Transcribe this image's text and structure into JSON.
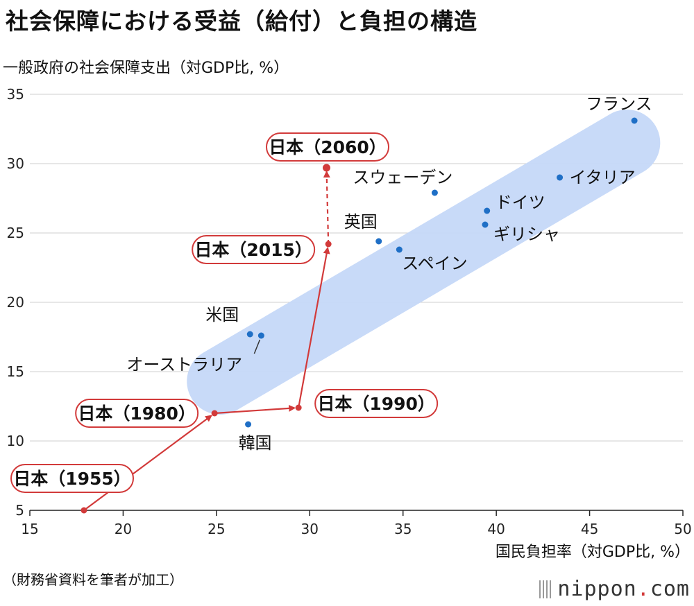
{
  "title": "社会保障における受益（給付）と負担の構造",
  "ylabel": "一般政府の社会保障支出（対GDP比, %）",
  "xlabel": "国民負担率（対GDP比, %）",
  "source": "（財務省資料を筆者が加工）",
  "brand": {
    "name": "nippon",
    "dot": ".",
    "tld": "com",
    "icon": "stripes-logo-icon"
  },
  "colors": {
    "band": "#c5d8f8",
    "point": "#1f6fc6",
    "japan": "#d23a3a",
    "grid": "#cfcfcf"
  },
  "chart_data": {
    "type": "scatter",
    "xlim": [
      15,
      50
    ],
    "ylim": [
      5,
      35
    ],
    "xticks": [
      15,
      20,
      25,
      30,
      35,
      40,
      45,
      50
    ],
    "yticks": [
      5,
      10,
      15,
      20,
      25,
      30,
      35
    ],
    "grid": "horizontal",
    "countries": [
      {
        "label": "フランス",
        "x": 47.4,
        "y": 33.1
      },
      {
        "label": "イタリア",
        "x": 43.4,
        "y": 29.0
      },
      {
        "label": "スウェーデン",
        "x": 36.7,
        "y": 27.9
      },
      {
        "label": "ドイツ",
        "x": 39.5,
        "y": 26.6
      },
      {
        "label": "ギリシャ",
        "x": 39.4,
        "y": 25.6
      },
      {
        "label": "英国",
        "x": 33.7,
        "y": 24.4
      },
      {
        "label": "スペイン",
        "x": 34.8,
        "y": 23.8
      },
      {
        "label": "米国",
        "x": 26.8,
        "y": 17.7
      },
      {
        "label": "オーストラリア",
        "x": 27.4,
        "y": 17.6
      },
      {
        "label": "韓国",
        "x": 26.7,
        "y": 11.2
      }
    ],
    "japan": [
      {
        "label": "日本（1955）",
        "x": 17.9,
        "y": 5.0
      },
      {
        "label": "日本（1980）",
        "x": 24.9,
        "y": 12.0
      },
      {
        "label": "日本（1990）",
        "x": 29.4,
        "y": 12.4
      },
      {
        "label": "日本（2015）",
        "x": 31.0,
        "y": 24.2
      },
      {
        "label": "日本（2060）",
        "x": 30.9,
        "y": 29.7
      }
    ]
  }
}
